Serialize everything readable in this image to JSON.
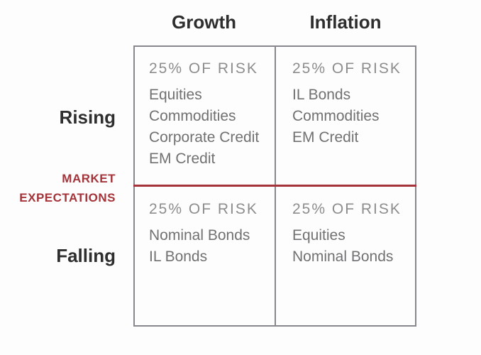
{
  "diagram": {
    "columns": {
      "growth": "Growth",
      "inflation": "Inflation"
    },
    "rows": {
      "rising": "Rising",
      "falling": "Falling"
    },
    "axis_label": {
      "line1": "MARKET",
      "line2": "EXPECTATIONS"
    },
    "quadrants": {
      "rising_growth": {
        "risk": "25% OF RISK",
        "assets": [
          "Equities",
          "Commodities",
          "Corporate Credit",
          "EM Credit"
        ]
      },
      "rising_inflation": {
        "risk": "25% OF RISK",
        "assets": [
          "IL Bonds",
          "Commodities",
          "EM Credit"
        ]
      },
      "falling_growth": {
        "risk": "25% OF RISK",
        "assets": [
          "Nominal Bonds",
          "IL Bonds"
        ]
      },
      "falling_inflation": {
        "risk": "25% OF RISK",
        "assets": [
          "Equities",
          "Nominal Bonds"
        ]
      }
    },
    "colors": {
      "accent_red": "#a5343a",
      "heading_text": "#2e2e2e",
      "risk_text": "#8d8d90",
      "asset_text": "#717174",
      "grid_border": "#87878d",
      "background": "#fdfdfd"
    }
  }
}
